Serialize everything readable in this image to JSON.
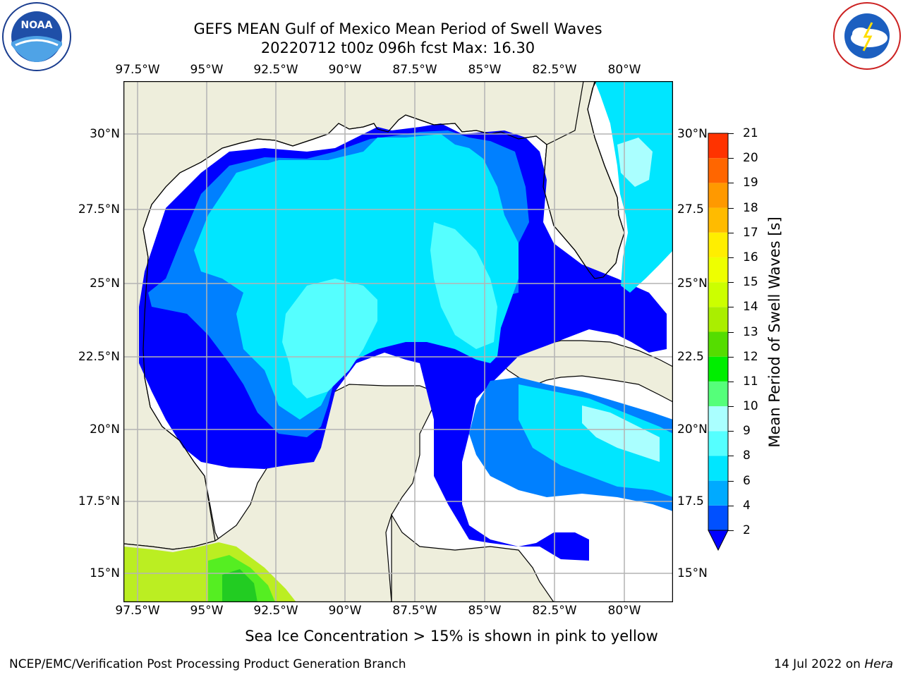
{
  "title": {
    "line1": "GEFS MEAN Gulf of Mexico Mean Period of Swell Waves",
    "line2": "20220712 t00z 096h fcst   Max: 16.30"
  },
  "logos": {
    "noaa": {
      "text": "NOAA",
      "ring_text": "NATIONAL OCEANIC AND ATMOSPHERIC ADMINISTRATION · U.S. DEPARTMENT OF COMMERCE"
    },
    "nws": {
      "ring_text": "NATIONAL WEATHER SERVICE"
    }
  },
  "map": {
    "lon_labels": [
      "97.5°W",
      "95°W",
      "92.5°W",
      "90°W",
      "87.5°W",
      "85°W",
      "82.5°W",
      "80°W"
    ],
    "lat_labels_left": [
      "30°N",
      "27.5°N",
      "25°N",
      "22.5°N",
      "20°N",
      "17.5°N",
      "15°N"
    ],
    "lat_labels_right": [
      "30°N",
      "27.5",
      "25°N",
      "22.5",
      "20°N",
      "17.5",
      "15°N"
    ],
    "colors": {
      "land": "#eeeedc",
      "ocean_bg": "#ffffff",
      "grid": "#b4b4b4"
    }
  },
  "colorbar": {
    "label": "Mean Period of Swell Waves [s]",
    "ticks": [
      "2",
      "4",
      "6",
      "8",
      "9",
      "10",
      "11",
      "12",
      "13",
      "14",
      "15",
      "16",
      "17",
      "18",
      "19",
      "20",
      "21"
    ],
    "colors": [
      "#0050ff",
      "#00aaff",
      "#00e6ff",
      "#55ffff",
      "#aaffff",
      "#55ff7a",
      "#00ee00",
      "#55dd00",
      "#aaee00",
      "#ccff00",
      "#eeff00",
      "#ffee00",
      "#ffbb00",
      "#ff9900",
      "#ff6600",
      "#ff3300"
    ],
    "under_color": "#0000ff"
  },
  "note": "Sea Ice Concentration > 15% is shown in pink to yellow",
  "footer": {
    "left": "NCEP/EMC/Verification Post Processing Product Generation Branch",
    "right_date": "14 Jul 2022 on ",
    "right_host": "Hera"
  }
}
